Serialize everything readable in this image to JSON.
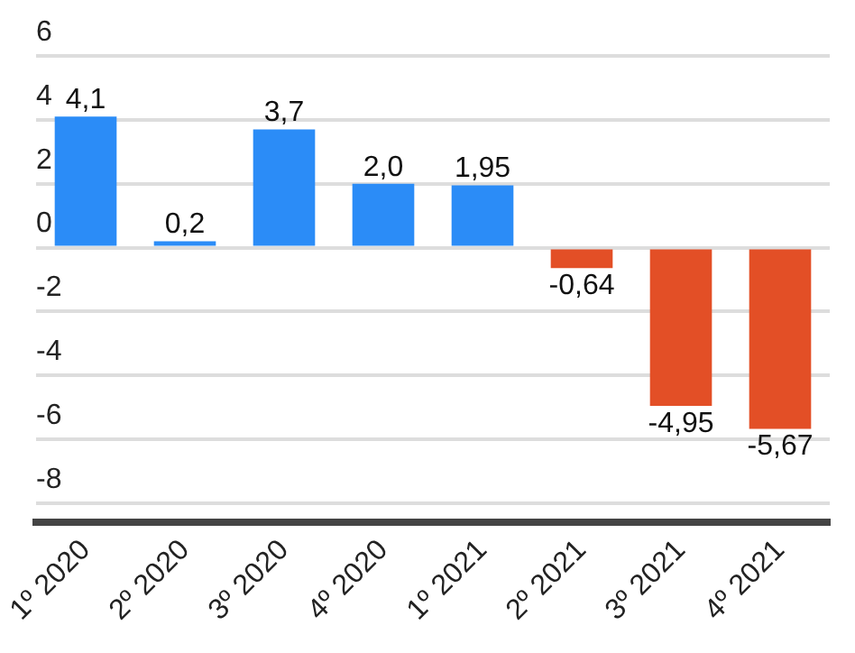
{
  "chart_data": {
    "type": "bar",
    "categories": [
      "1º 2020",
      "2º 2020",
      "3º 2020",
      "4º 2020",
      "1º 2021",
      "2º 2021",
      "3º 2021",
      "4º 2021"
    ],
    "values": [
      4.1,
      0.2,
      3.7,
      2.0,
      1.95,
      -0.64,
      -4.95,
      -5.67
    ],
    "value_labels": [
      "4,1",
      "0,2",
      "3,7",
      "2,0",
      "1,95",
      "-0,64",
      "-4,95",
      "-5,67"
    ],
    "colors": [
      "#2b8cf7",
      "#2b8cf7",
      "#2b8cf7",
      "#2b8cf7",
      "#2b8cf7",
      "#e34f26",
      "#e34f26",
      "#e34f26"
    ],
    "ylim": [
      -8.6,
      6
    ],
    "yticks": [
      -8,
      -6,
      -4,
      -2,
      0,
      2,
      4,
      6
    ],
    "grid": "y",
    "legend": false
  }
}
